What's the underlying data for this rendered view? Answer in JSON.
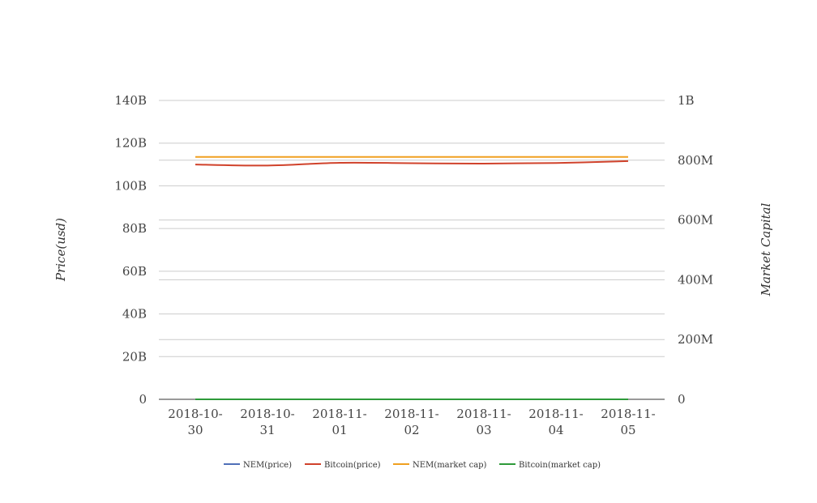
{
  "chart_data": {
    "type": "line",
    "categories": [
      "2018-10-30",
      "2018-10-31",
      "2018-11-01",
      "2018-11-02",
      "2018-11-03",
      "2018-11-04",
      "2018-11-05"
    ],
    "category_labels": [
      [
        "2018-10-",
        "30"
      ],
      [
        "2018-10-",
        "31"
      ],
      [
        "2018-11-",
        "01"
      ],
      [
        "2018-11-",
        "02"
      ],
      [
        "2018-11-",
        "03"
      ],
      [
        "2018-11-",
        "04"
      ],
      [
        "2018-11-",
        "05"
      ]
    ],
    "y_left": {
      "label": "Price(usd)",
      "range": [
        0,
        140000000000
      ],
      "ticks": [
        0,
        20000000000,
        40000000000,
        60000000000,
        80000000000,
        100000000000,
        120000000000,
        140000000000
      ],
      "tick_labels": [
        "0",
        "20B",
        "40B",
        "60B",
        "80B",
        "100B",
        "120B",
        "140B"
      ]
    },
    "y_right": {
      "label": "Market Capital",
      "range": [
        0,
        1000000000
      ],
      "ticks": [
        0,
        200000000,
        400000000,
        600000000,
        800000000,
        1000000000
      ],
      "tick_labels": [
        "0",
        "200M",
        "400M",
        "600M",
        "800M",
        "1B"
      ]
    },
    "series": [
      {
        "name": "NEM(price)",
        "color": "#4f6fb8",
        "axis": "left",
        "values": [
          0.11,
          0.11,
          0.11,
          0.11,
          0.11,
          0.11,
          0.11
        ]
      },
      {
        "name": "Bitcoin(price)",
        "color": "#d0422b",
        "axis": "left",
        "values": [
          110000000000,
          109500000000,
          110800000000,
          110600000000,
          110400000000,
          110700000000,
          111600000000
        ]
      },
      {
        "name": "NEM(market cap)",
        "color": "#f0a020",
        "axis": "right",
        "values": [
          811000000,
          811000000,
          811000000,
          811000000,
          811000000,
          811000000,
          811000000
        ]
      },
      {
        "name": "Bitcoin(market cap)",
        "color": "#2e9a3a",
        "axis": "right",
        "values": [
          6400,
          6300,
          6400,
          6400,
          6400,
          6400,
          6400
        ]
      }
    ],
    "grid": true,
    "legend_position": "bottom"
  }
}
